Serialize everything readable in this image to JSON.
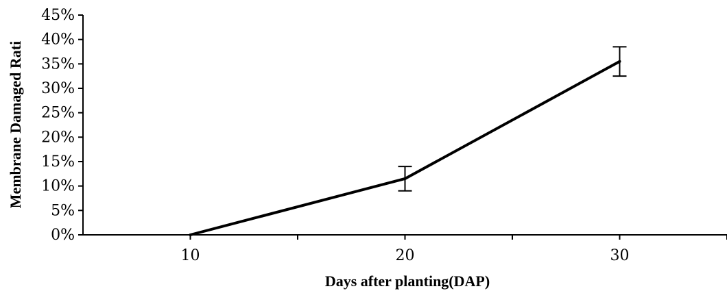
{
  "chart_data": {
    "type": "line",
    "title": "",
    "xlabel": "Days after planting(DAP)",
    "ylabel": "Membrane Damaged Rati",
    "x_categories": [
      "10",
      "20",
      "30"
    ],
    "x_range": [
      5,
      35
    ],
    "ylim": [
      0,
      45
    ],
    "y_ticks": [
      0,
      5,
      10,
      15,
      20,
      25,
      30,
      35,
      40,
      45
    ],
    "y_tick_format": "%",
    "x_minor_ticks": [
      15,
      25,
      35
    ],
    "grid": false,
    "legend": "none",
    "series": [
      {
        "x": [
          10,
          20,
          30
        ],
        "y": [
          0,
          11.5,
          35.5
        ],
        "error": [
          null,
          2.5,
          3.0
        ],
        "color": "#000000"
      }
    ]
  }
}
